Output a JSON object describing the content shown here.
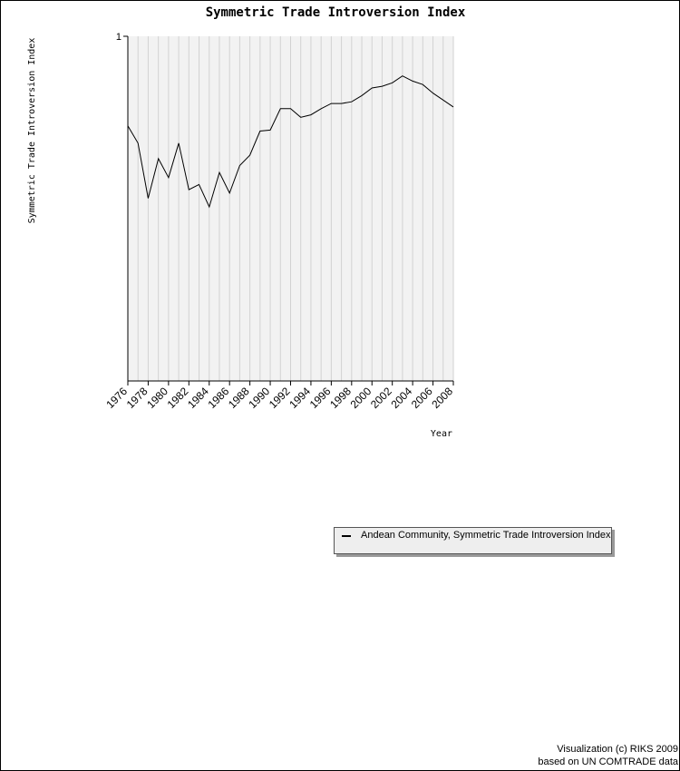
{
  "chart_data": {
    "type": "line",
    "title": "Symmetric Trade Introversion Index",
    "xlabel": "Year",
    "ylabel": "Symmetric Trade Introversion Index",
    "x": [
      1976,
      1977,
      1978,
      1979,
      1980,
      1981,
      1982,
      1983,
      1984,
      1985,
      1986,
      1987,
      1988,
      1989,
      1990,
      1991,
      1992,
      1993,
      1994,
      1995,
      1996,
      1997,
      1998,
      1999,
      2000,
      2001,
      2002,
      2003,
      2004,
      2005,
      2006,
      2007,
      2008
    ],
    "x_tick_labels": [
      "1976",
      "1978",
      "1980",
      "1982",
      "1984",
      "1986",
      "1988",
      "1990",
      "1992",
      "1994",
      "1996",
      "1998",
      "2000",
      "2002",
      "2004",
      "2006",
      "2008"
    ],
    "y_tick_labels": [
      "1"
    ],
    "ylim": [
      0,
      1
    ],
    "grid": "vertical",
    "series": [
      {
        "name": "Andean Community, Symmetric Trade Introversion Index",
        "color": "#000000",
        "values": [
          0.74,
          0.69,
          0.53,
          0.645,
          0.59,
          0.69,
          0.555,
          0.57,
          0.505,
          0.605,
          0.545,
          0.625,
          0.655,
          0.725,
          0.728,
          0.79,
          0.79,
          0.765,
          0.772,
          0.79,
          0.805,
          0.805,
          0.81,
          0.828,
          0.85,
          0.855,
          0.865,
          0.885,
          0.87,
          0.86,
          0.835,
          0.815,
          0.795
        ]
      }
    ],
    "legend": {
      "label": "Andean Community, Symmetric Trade Introversion Index",
      "position": "bottom-right"
    }
  },
  "credits": {
    "line1": "Visualization (c) RIKS 2009",
    "line2": "based on UN COMTRADE data"
  }
}
